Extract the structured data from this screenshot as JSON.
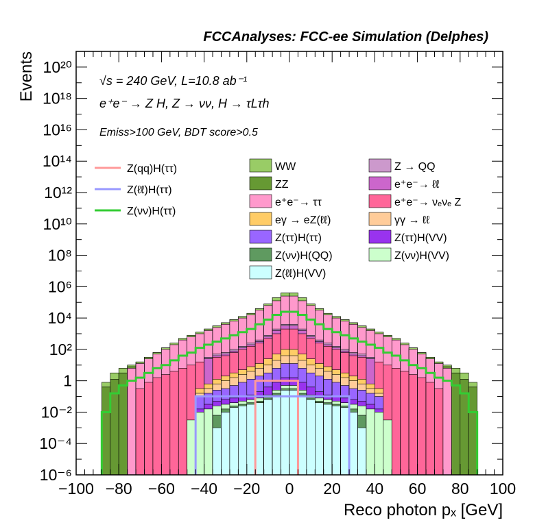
{
  "chart_data": {
    "type": "bar",
    "title": "FCCAnalyses: FCC-ee Simulation (Delphes)",
    "xlabel": "Reco photon pₓ [GeV]",
    "ylabel": "Events",
    "yscale": "log",
    "xlim": [
      -100,
      100
    ],
    "ylim": [
      1e-06,
      1e+21
    ],
    "x_ticks": [
      "−100",
      "−80",
      "−60",
      "−40",
      "−20",
      "0",
      "20",
      "40",
      "60",
      "80",
      "100"
    ],
    "y_ticks": [
      "10⁻⁶",
      "10⁻⁴",
      "10⁻²",
      "1",
      "10²",
      "10⁴",
      "10⁶",
      "10⁸",
      "10¹⁰",
      "10¹²",
      "10¹⁴",
      "10¹⁶",
      "10¹⁸",
      "10²⁰"
    ],
    "annotations": [
      "√s = 240 GeV, L=10.8 ab⁻¹",
      "e⁺e⁻ → Z H, Z → νν, H → τLτh",
      "Emiss>100 GeV, BDT score>0.5"
    ],
    "bin_width": 4,
    "x_bins_low": [
      -88,
      -84,
      -80,
      -76,
      -72,
      -68,
      -64,
      -60,
      -56,
      -52,
      -48,
      -44,
      -40,
      -36,
      -32,
      -28,
      -24,
      -20,
      -16,
      -12,
      -8,
      -4,
      0,
      4,
      8,
      12,
      16,
      20,
      24,
      28,
      32,
      36,
      40,
      44,
      48,
      52,
      56,
      60,
      64,
      68,
      72,
      76,
      80,
      84
    ],
    "stack_totals_log10": [
      -0.1,
      0.5,
      0.8,
      1.0,
      1.2,
      1.5,
      1.8,
      2.1,
      2.4,
      2.7,
      2.9,
      3.1,
      3.3,
      3.5,
      3.7,
      3.9,
      4.1,
      4.3,
      4.6,
      4.9,
      5.3,
      5.6,
      5.6,
      5.3,
      4.9,
      4.6,
      4.3,
      4.1,
      3.9,
      3.7,
      3.5,
      3.3,
      3.1,
      2.9,
      2.7,
      2.4,
      2.1,
      1.8,
      1.5,
      1.2,
      1.0,
      0.8,
      0.5,
      -0.1
    ],
    "stack_layers_log10": [
      {
        "name": "Z(ℓℓ)H(VV)",
        "color": "#ccffff",
        "values": [
          null,
          null,
          null,
          null,
          null,
          null,
          null,
          null,
          null,
          null,
          null,
          null,
          null,
          -3.0,
          -2.0,
          -1.7,
          -1.6,
          -1.5,
          -1.4,
          -1.2,
          -0.9,
          -0.6,
          -0.6,
          -0.9,
          -1.2,
          -1.4,
          -1.5,
          -1.6,
          -1.7,
          -2.0,
          -3.0,
          null,
          null,
          null,
          null,
          null,
          null,
          null,
          null,
          null,
          null,
          null,
          null,
          null
        ]
      },
      {
        "name": "Z(νν)H(QQ)",
        "color": "#5f9a60",
        "values": [
          null,
          null,
          null,
          null,
          null,
          null,
          null,
          null,
          null,
          null,
          null,
          null,
          null,
          -2.2,
          -1.8,
          -1.6,
          -1.5,
          -1.4,
          -1.3,
          -1.1,
          -0.8,
          -0.5,
          -0.5,
          -0.8,
          -1.1,
          -1.3,
          -1.4,
          -1.5,
          -1.6,
          -1.8,
          -2.2,
          null,
          null,
          null,
          null,
          null,
          null,
          null,
          null,
          null,
          null,
          null,
          null,
          null
        ]
      },
      {
        "name": "Z(νν)H(VV)",
        "color": "#ccffcc",
        "values": [
          null,
          null,
          null,
          null,
          null,
          null,
          null,
          null,
          null,
          null,
          -2.5,
          -2.0,
          -1.8,
          -1.6,
          -1.5,
          -1.4,
          -1.3,
          -1.2,
          -1.1,
          -0.9,
          -0.6,
          -0.3,
          -0.3,
          -0.6,
          -0.9,
          -1.1,
          -1.2,
          -1.3,
          -1.4,
          -1.5,
          -1.6,
          -1.8,
          -2.0,
          -2.5,
          null,
          null,
          null,
          null,
          null,
          null,
          null,
          null,
          null,
          null
        ]
      },
      {
        "name": "Z(ττ)H(VV)",
        "color": "#9933ee",
        "values": [
          null,
          null,
          null,
          null,
          null,
          null,
          null,
          null,
          null,
          null,
          null,
          -1.8,
          -1.5,
          -1.3,
          -1.2,
          -1.1,
          -1.0,
          -0.9,
          -0.7,
          -0.4,
          -0.1,
          0.2,
          0.2,
          -0.1,
          -0.4,
          -0.7,
          -0.9,
          -1.0,
          -1.1,
          -1.2,
          -1.3,
          -1.5,
          -1.8,
          null,
          null,
          null,
          null,
          null,
          null,
          null,
          null,
          null,
          null,
          null
        ]
      },
      {
        "name": "Z(ττ)H(ττ)",
        "color": "#9966ff",
        "values": [
          null,
          null,
          null,
          null,
          null,
          null,
          null,
          null,
          null,
          null,
          null,
          -1.0,
          -0.8,
          -0.6,
          -0.5,
          -0.3,
          -0.1,
          0.1,
          0.3,
          0.5,
          0.8,
          1.1,
          1.1,
          0.8,
          0.5,
          0.3,
          0.1,
          -0.1,
          -0.3,
          -0.5,
          -0.6,
          -0.8,
          -1.0,
          null,
          null,
          null,
          null,
          null,
          null,
          null,
          null,
          null,
          null,
          null
        ]
      },
      {
        "name": "γγ → ℓℓ",
        "color": "#ffcc99",
        "values": [
          null,
          null,
          null,
          null,
          null,
          null,
          null,
          null,
          null,
          null,
          null,
          -0.8,
          -0.5,
          -0.2,
          0.0,
          0.2,
          0.4,
          0.6,
          0.8,
          1.0,
          1.3,
          1.6,
          1.6,
          1.3,
          1.0,
          0.8,
          0.6,
          0.4,
          0.2,
          0.0,
          -0.2,
          -0.5,
          -0.8,
          null,
          null,
          null,
          null,
          null,
          null,
          null,
          null,
          null,
          null,
          null
        ]
      },
      {
        "name": "eγ → eZ(ℓℓ)",
        "color": "#ffcc66",
        "values": [
          null,
          null,
          null,
          null,
          null,
          null,
          null,
          null,
          null,
          null,
          null,
          -0.5,
          -0.2,
          0.1,
          0.3,
          0.5,
          0.7,
          0.9,
          1.1,
          1.4,
          1.7,
          2.0,
          2.0,
          1.7,
          1.4,
          1.1,
          0.9,
          0.7,
          0.5,
          0.3,
          0.1,
          -0.2,
          -0.5,
          null,
          null,
          null,
          null,
          null,
          null,
          null,
          null,
          null,
          null,
          null
        ]
      },
      {
        "name": "e⁺e⁻→ νₑνₑ Z",
        "color": "#ff6699",
        "values": [
          null,
          null,
          null,
          null,
          -0.5,
          -0.1,
          0.2,
          0.4,
          0.6,
          0.8,
          1.0,
          1.2,
          1.4,
          1.5,
          1.6,
          1.8,
          2.0,
          2.2,
          2.4,
          2.7,
          3.0,
          3.3,
          3.3,
          3.0,
          2.7,
          2.4,
          2.2,
          2.0,
          1.8,
          1.6,
          1.5,
          1.4,
          1.2,
          1.0,
          0.8,
          0.6,
          0.4,
          0.2,
          -0.1,
          -0.5,
          null,
          null,
          null,
          null
        ]
      },
      {
        "name": "e⁺e⁻→ ℓℓ",
        "color": "#cc66cc",
        "values": [
          null,
          null,
          null,
          null,
          null,
          null,
          null,
          null,
          null,
          null,
          null,
          null,
          1.4,
          1.6,
          1.7,
          1.9,
          2.1,
          2.3,
          2.5,
          2.8,
          3.2,
          3.5,
          3.5,
          3.2,
          2.8,
          2.5,
          2.3,
          2.1,
          1.9,
          1.7,
          1.6,
          1.4,
          null,
          null,
          null,
          null,
          null,
          null,
          null,
          null,
          null,
          null,
          null,
          null
        ]
      },
      {
        "name": "Z → QQ",
        "color": "#cc99cc",
        "values": [
          null,
          null,
          null,
          null,
          null,
          null,
          null,
          null,
          null,
          null,
          null,
          null,
          1.5,
          1.7,
          1.8,
          2.0,
          2.2,
          2.4,
          2.6,
          2.9,
          3.3,
          3.6,
          3.6,
          3.3,
          2.9,
          2.6,
          2.4,
          2.2,
          2.0,
          1.8,
          1.7,
          1.5,
          null,
          null,
          null,
          null,
          null,
          null,
          null,
          null,
          null,
          null,
          null,
          null
        ]
      },
      {
        "name": "e⁺e⁻→ ττ",
        "color": "#ff99cc",
        "values": [
          null,
          null,
          null,
          0.8,
          1.1,
          1.4,
          1.7,
          2.0,
          2.3,
          2.6,
          2.8,
          3.0,
          3.2,
          3.4,
          3.6,
          3.8,
          4.0,
          4.2,
          4.5,
          4.8,
          5.1,
          5.4,
          5.4,
          5.1,
          4.8,
          4.5,
          4.2,
          4.0,
          3.8,
          3.6,
          3.4,
          3.2,
          3.0,
          2.8,
          2.6,
          2.3,
          2.0,
          1.7,
          1.4,
          1.1,
          0.8,
          null,
          null,
          null
        ]
      },
      {
        "name": "ZZ",
        "color": "#669933",
        "values": [
          -0.4,
          0.1,
          0.5,
          0.9,
          1.2,
          1.5,
          1.8,
          2.1,
          2.4,
          2.7,
          2.9,
          3.1,
          3.3,
          3.5,
          3.7,
          3.9,
          4.1,
          4.3,
          4.6,
          4.9,
          5.3,
          5.6,
          5.6,
          5.3,
          4.9,
          4.6,
          4.3,
          4.1,
          3.9,
          3.7,
          3.5,
          3.3,
          3.1,
          2.9,
          2.7,
          2.4,
          2.1,
          1.8,
          1.5,
          1.2,
          0.9,
          0.5,
          0.1,
          -0.4
        ]
      },
      {
        "name": "WW",
        "color": "#99cc66",
        "values": [
          -0.1,
          0.5,
          0.8,
          1.0,
          1.2,
          1.5,
          1.8,
          2.1,
          2.4,
          2.7,
          2.9,
          3.1,
          3.3,
          3.5,
          3.7,
          3.9,
          4.1,
          4.3,
          4.6,
          4.9,
          5.3,
          5.6,
          5.6,
          5.3,
          4.9,
          4.6,
          4.3,
          4.1,
          3.9,
          3.7,
          3.5,
          3.3,
          3.1,
          2.9,
          2.7,
          2.4,
          2.1,
          1.8,
          1.5,
          1.2,
          1.0,
          0.8,
          0.5,
          -0.1
        ]
      }
    ],
    "stack_legend": [
      {
        "name": "WW",
        "color": "#99cc66"
      },
      {
        "name": "ZZ",
        "color": "#669933"
      },
      {
        "name": "e⁺e⁻→ ττ",
        "color": "#ff99cc"
      },
      {
        "name": "eγ → eZ(ℓℓ)",
        "color": "#ffcc66"
      },
      {
        "name": "Z(ττ)H(ττ)",
        "color": "#9966ff"
      },
      {
        "name": "Z(νν)H(QQ)",
        "color": "#5f9a60"
      },
      {
        "name": "Z(ℓℓ)H(VV)",
        "color": "#ccffff"
      },
      {
        "name": "Z → QQ",
        "color": "#cc99cc"
      },
      {
        "name": "e⁺e⁻→ ℓℓ",
        "color": "#cc66cc"
      },
      {
        "name": "e⁺e⁻→ νₑνₑ Z",
        "color": "#ff6699"
      },
      {
        "name": "γγ → ℓℓ",
        "color": "#ffcc99"
      },
      {
        "name": "Z(ττ)H(VV)",
        "color": "#9933ee"
      },
      {
        "name": "Z(νν)H(VV)",
        "color": "#ccffcc"
      }
    ],
    "signals": [
      {
        "name": "Z(qq)H(ττ)",
        "color": "#ff9999",
        "x_low": -16,
        "x_high": 4,
        "log10_level": 0.0
      },
      {
        "name": "Z(ℓℓ)H(ττ)",
        "color": "#9999ff",
        "x_low": -44,
        "x_high": 28,
        "log10_level": -1.0
      },
      {
        "name": "Z(νν)H(ττ)",
        "color": "#33cc33",
        "values": [
          -2.0,
          -0.8,
          -0.3,
          0.0,
          0.2,
          0.5,
          0.8,
          1.0,
          1.3,
          1.6,
          1.8,
          2.1,
          2.3,
          2.5,
          2.7,
          2.9,
          3.1,
          3.3,
          3.6,
          3.9,
          4.2,
          4.4,
          4.4,
          4.2,
          3.9,
          3.6,
          3.3,
          3.1,
          2.9,
          2.7,
          2.5,
          2.3,
          2.1,
          1.8,
          1.6,
          1.3,
          1.0,
          0.8,
          0.5,
          0.2,
          0.0,
          -0.3,
          -0.8,
          -2.0
        ]
      }
    ]
  }
}
